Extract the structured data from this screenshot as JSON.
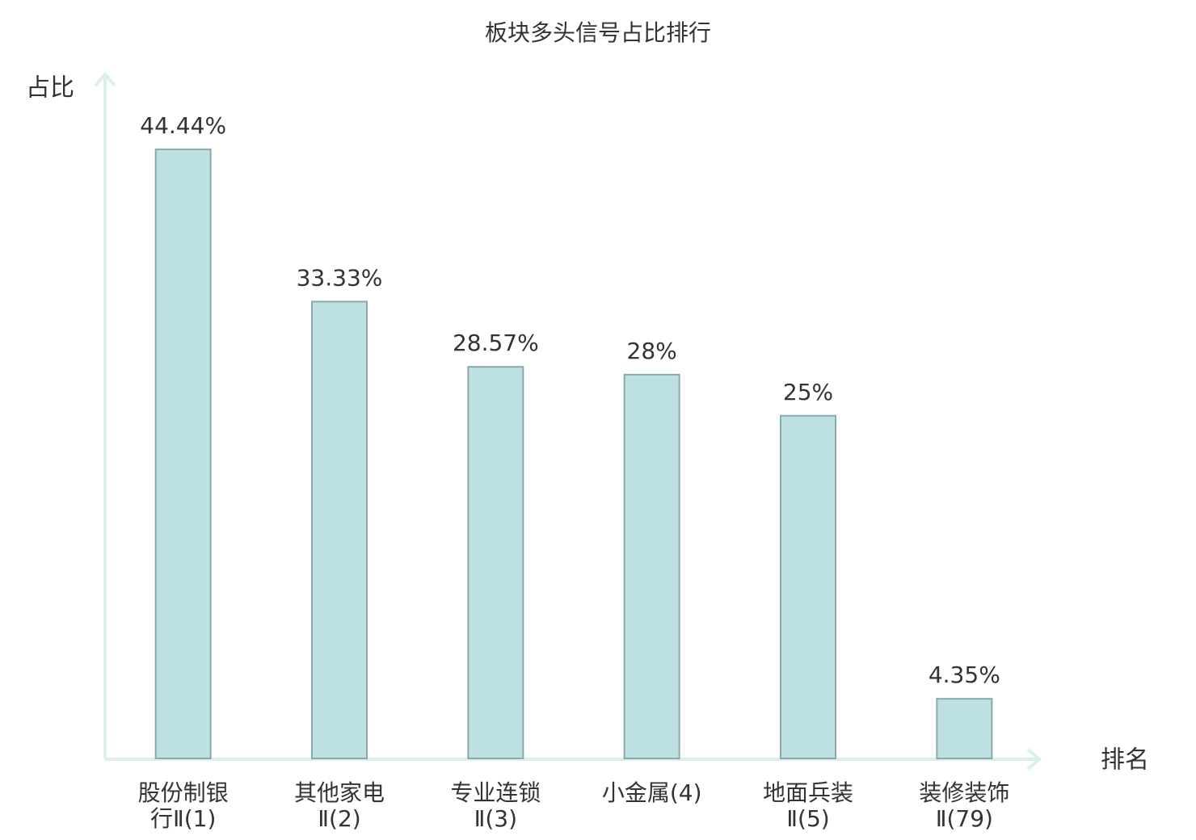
{
  "chart_data": {
    "type": "bar",
    "title": "板块多头信号占比排行",
    "y_label": "占比",
    "x_label": "排名",
    "categories": [
      "股份制银行Ⅱ(1)",
      "其他家电Ⅱ(2)",
      "专业连锁Ⅱ(3)",
      "小金属(4)",
      "地面兵装Ⅱ(5)",
      "装修装饰Ⅱ(79)"
    ],
    "values": [
      44.44,
      33.33,
      28.57,
      28,
      25,
      4.35
    ],
    "value_labels": [
      "44.44%",
      "33.33%",
      "28.57%",
      "28%",
      "25%",
      "4.35%"
    ],
    "color": "#bde0e3",
    "edge_color": "#8aa9ab",
    "category_colors": [
      "#222222",
      "#222222",
      "#222222",
      "#222222",
      "#222222",
      "#e02020"
    ],
    "ylim": [
      0,
      50
    ]
  }
}
